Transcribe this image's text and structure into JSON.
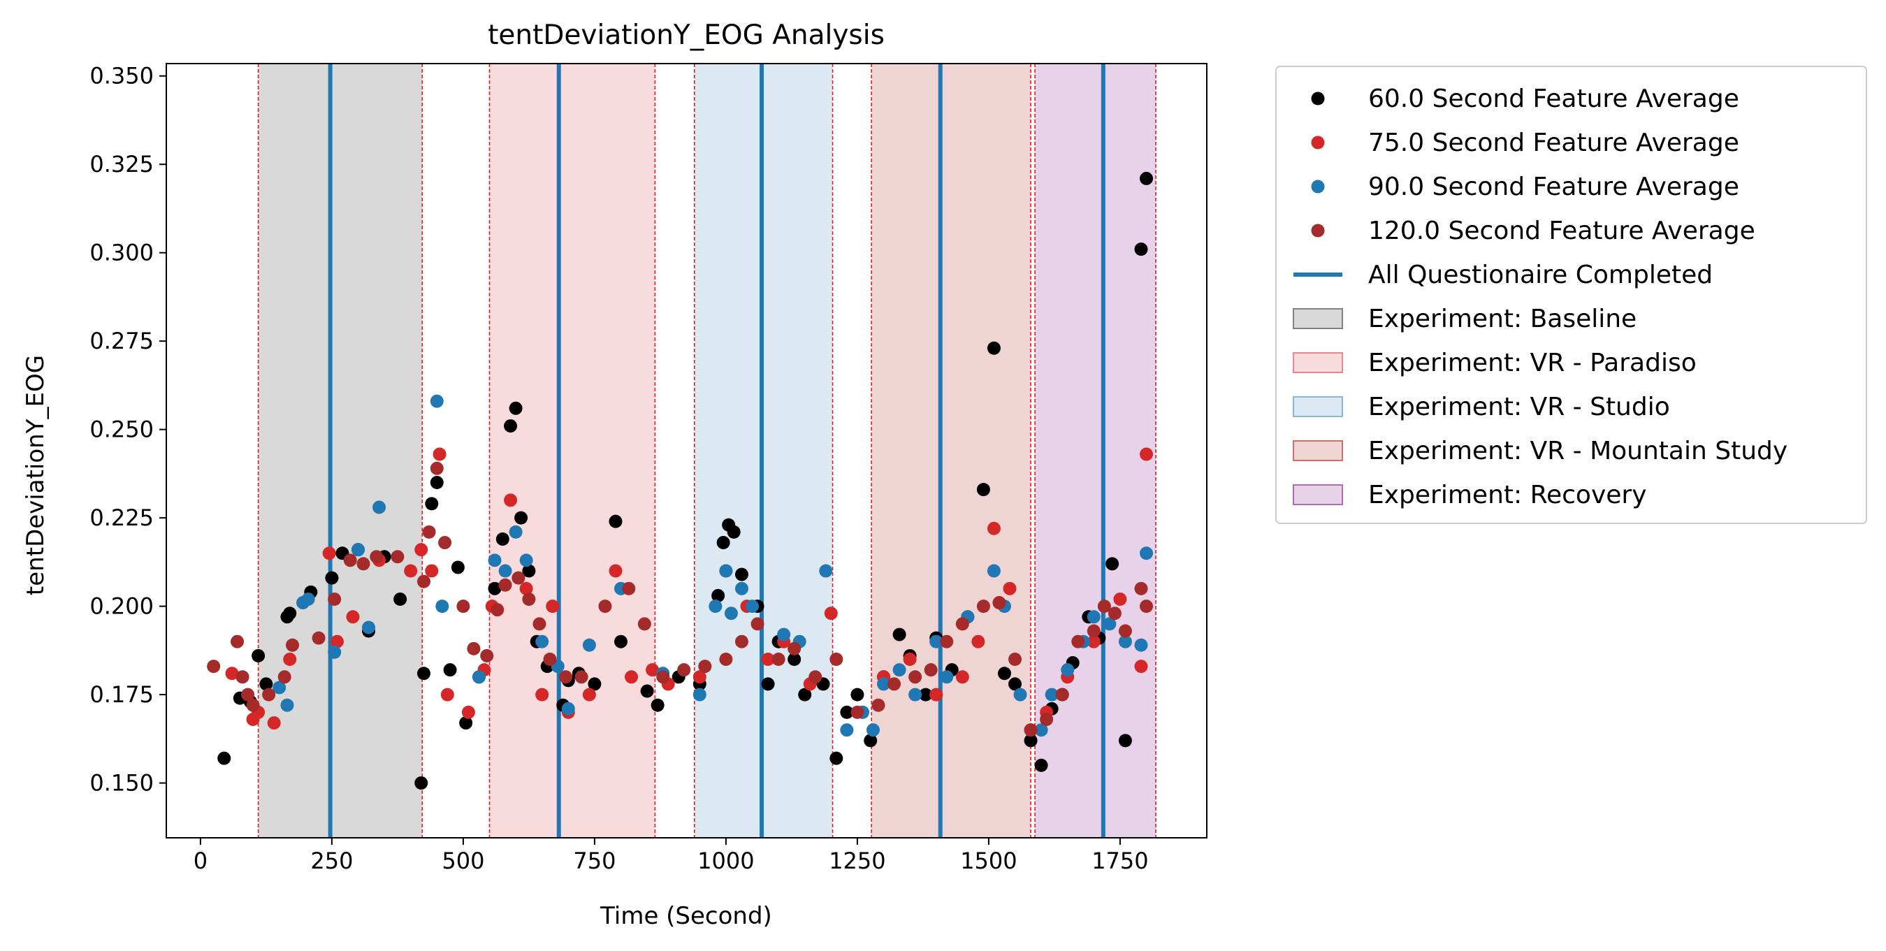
{
  "chart_data": {
    "type": "scatter",
    "title": "tentDeviationY_EOG Analysis",
    "xlabel": "Time (Second)",
    "ylabel": "tentDeviationY_EOG",
    "xlim": [
      -65,
      1915
    ],
    "ylim": [
      0.1345,
      0.3535
    ],
    "xticks": [
      0,
      250,
      500,
      750,
      1000,
      1250,
      1500,
      1750
    ],
    "xtick_labels": [
      "0",
      "250",
      "500",
      "750",
      "1000",
      "1250",
      "1500",
      "1750"
    ],
    "yticks": [
      0.15,
      0.175,
      0.2,
      0.225,
      0.25,
      0.275,
      0.3,
      0.325,
      0.35
    ],
    "ytick_labels": [
      "0.150",
      "0.175",
      "0.200",
      "0.225",
      "0.250",
      "0.275",
      "0.300",
      "0.325",
      "0.350"
    ],
    "grid": false,
    "legend_placement": "outside right",
    "series": [
      {
        "name": "60.0 Second Feature Average",
        "color": "#000000",
        "x": [
          45,
          75,
          95,
          110,
          125,
          165,
          170,
          210,
          250,
          270,
          300,
          320,
          350,
          380,
          420,
          425,
          440,
          450,
          475,
          490,
          505,
          530,
          560,
          575,
          590,
          600,
          610,
          625,
          640,
          660,
          690,
          700,
          720,
          750,
          790,
          800,
          850,
          870,
          910,
          950,
          985,
          995,
          1005,
          1015,
          1030,
          1060,
          1080,
          1100,
          1130,
          1150,
          1185,
          1210,
          1230,
          1250,
          1275,
          1300,
          1330,
          1350,
          1380,
          1400,
          1430,
          1460,
          1490,
          1510,
          1530,
          1550,
          1580,
          1600,
          1620,
          1640,
          1660,
          1690,
          1710,
          1735,
          1760,
          1790,
          1800
        ],
        "y": [
          0.157,
          0.174,
          0.173,
          0.186,
          0.178,
          0.197,
          0.198,
          0.204,
          0.208,
          0.215,
          0.216,
          0.193,
          0.214,
          0.202,
          0.15,
          0.181,
          0.229,
          0.235,
          0.182,
          0.211,
          0.167,
          0.18,
          0.205,
          0.219,
          0.251,
          0.256,
          0.225,
          0.21,
          0.19,
          0.183,
          0.172,
          0.179,
          0.181,
          0.178,
          0.224,
          0.19,
          0.176,
          0.172,
          0.18,
          0.178,
          0.203,
          0.218,
          0.223,
          0.221,
          0.209,
          0.2,
          0.178,
          0.19,
          0.185,
          0.175,
          0.178,
          0.157,
          0.17,
          0.175,
          0.162,
          0.18,
          0.192,
          0.186,
          0.175,
          0.191,
          0.182,
          0.197,
          0.233,
          0.273,
          0.181,
          0.178,
          0.162,
          0.155,
          0.171,
          0.175,
          0.184,
          0.197,
          0.191,
          0.212,
          0.162,
          0.301,
          0.321
        ]
      },
      {
        "name": "75.0 Second Feature Average",
        "color": "#d62728",
        "x": [
          60,
          100,
          110,
          140,
          170,
          245,
          260,
          290,
          340,
          400,
          420,
          440,
          455,
          470,
          510,
          540,
          555,
          590,
          620,
          650,
          670,
          700,
          740,
          790,
          820,
          860,
          890,
          950,
          1000,
          1040,
          1080,
          1110,
          1160,
          1200,
          1260,
          1300,
          1350,
          1400,
          1450,
          1480,
          1510,
          1540,
          1580,
          1610,
          1650,
          1700,
          1750,
          1790,
          1800
        ],
        "y": [
          0.181,
          0.168,
          0.17,
          0.167,
          0.185,
          0.215,
          0.19,
          0.197,
          0.213,
          0.21,
          0.216,
          0.21,
          0.243,
          0.175,
          0.17,
          0.182,
          0.2,
          0.23,
          0.205,
          0.175,
          0.2,
          0.17,
          0.175,
          0.21,
          0.18,
          0.182,
          0.178,
          0.18,
          0.21,
          0.2,
          0.185,
          0.19,
          0.178,
          0.198,
          0.17,
          0.18,
          0.185,
          0.175,
          0.18,
          0.19,
          0.222,
          0.205,
          0.165,
          0.17,
          0.18,
          0.19,
          0.202,
          0.183,
          0.243
        ]
      },
      {
        "name": "90.0 Second Feature Average",
        "color": "#1f77b4",
        "x": [
          150,
          165,
          195,
          205,
          255,
          300,
          320,
          340,
          450,
          460,
          530,
          560,
          580,
          600,
          620,
          650,
          680,
          700,
          740,
          800,
          880,
          950,
          980,
          1000,
          1010,
          1030,
          1050,
          1110,
          1140,
          1190,
          1230,
          1260,
          1280,
          1300,
          1330,
          1360,
          1400,
          1420,
          1460,
          1510,
          1530,
          1560,
          1600,
          1620,
          1650,
          1680,
          1700,
          1730,
          1760,
          1790,
          1800
        ],
        "y": [
          0.177,
          0.172,
          0.201,
          0.202,
          0.187,
          0.216,
          0.194,
          0.228,
          0.258,
          0.2,
          0.18,
          0.213,
          0.21,
          0.221,
          0.213,
          0.19,
          0.183,
          0.171,
          0.189,
          0.205,
          0.181,
          0.175,
          0.2,
          0.21,
          0.198,
          0.205,
          0.2,
          0.192,
          0.19,
          0.21,
          0.165,
          0.17,
          0.165,
          0.178,
          0.182,
          0.175,
          0.19,
          0.18,
          0.197,
          0.21,
          0.2,
          0.175,
          0.165,
          0.175,
          0.182,
          0.19,
          0.197,
          0.195,
          0.19,
          0.189,
          0.215
        ]
      },
      {
        "name": "120.0 Second Feature Average",
        "color": "#a52a2a",
        "x": [
          25,
          70,
          80,
          90,
          100,
          130,
          160,
          175,
          225,
          255,
          285,
          310,
          335,
          375,
          425,
          435,
          450,
          465,
          500,
          520,
          545,
          565,
          580,
          605,
          625,
          645,
          665,
          695,
          725,
          770,
          815,
          845,
          880,
          920,
          960,
          1000,
          1030,
          1060,
          1100,
          1130,
          1170,
          1210,
          1250,
          1290,
          1320,
          1360,
          1390,
          1420,
          1450,
          1490,
          1520,
          1550,
          1580,
          1610,
          1640,
          1670,
          1700,
          1720,
          1740,
          1760,
          1790,
          1800
        ],
        "y": [
          0.183,
          0.19,
          0.18,
          0.175,
          0.172,
          0.175,
          0.18,
          0.189,
          0.191,
          0.202,
          0.213,
          0.212,
          0.214,
          0.214,
          0.207,
          0.221,
          0.239,
          0.218,
          0.2,
          0.188,
          0.186,
          0.199,
          0.206,
          0.208,
          0.202,
          0.195,
          0.185,
          0.18,
          0.18,
          0.2,
          0.205,
          0.195,
          0.18,
          0.182,
          0.183,
          0.185,
          0.19,
          0.195,
          0.185,
          0.188,
          0.18,
          0.185,
          0.17,
          0.172,
          0.178,
          0.18,
          0.182,
          0.19,
          0.195,
          0.2,
          0.201,
          0.185,
          0.165,
          0.168,
          0.175,
          0.19,
          0.193,
          0.2,
          0.198,
          0.193,
          0.205,
          0.2
        ]
      }
    ],
    "vlines": {
      "name": "All Questionaire Completed",
      "color": "#1f77b4",
      "x": [
        247,
        682,
        1068,
        1408,
        1718
      ]
    },
    "boundaries": [
      110,
      422,
      550,
      865,
      940,
      1203,
      1277,
      1580,
      1588,
      1818
    ],
    "spans": [
      {
        "name": "Experiment: Baseline",
        "start": 110,
        "end": 422,
        "color": "#808080",
        "alpha": 0.3
      },
      {
        "name": "Experiment: VR - Paradiso",
        "start": 550,
        "end": 865,
        "color": "#e8888c",
        "alpha": 0.3
      },
      {
        "name": "Experiment: VR - Studio",
        "start": 940,
        "end": 1203,
        "color": "#8ab6d6",
        "alpha": 0.3
      },
      {
        "name": "Experiment: VR - Mountain Study",
        "start": 1277,
        "end": 1580,
        "color": "#c9716f",
        "alpha": 0.3
      },
      {
        "name": "Experiment: Recovery",
        "start": 1588,
        "end": 1818,
        "color": "#b26ab8",
        "alpha": 0.3
      }
    ]
  }
}
